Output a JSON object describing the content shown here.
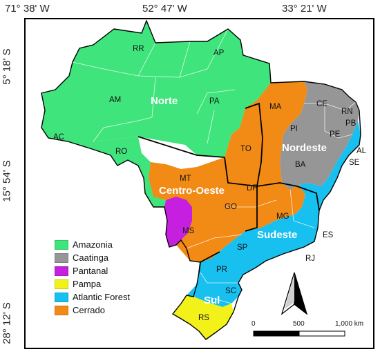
{
  "coordinates": {
    "longitudes": [
      "71° 38' W",
      "52° 47' W",
      "33° 21' W"
    ],
    "latitudes": [
      "5° 18' S",
      "15° 54' S",
      "28° 12' S"
    ]
  },
  "regions": [
    "Norte",
    "Nordeste",
    "Centro-Oeste",
    "Sudeste",
    "Sul"
  ],
  "states": [
    "RR",
    "AP",
    "AM",
    "PA",
    "AC",
    "RO",
    "MA",
    "CE",
    "RN",
    "PB",
    "PI",
    "PE",
    "AL",
    "SE",
    "TO",
    "BA",
    "MT",
    "DF",
    "GO",
    "MG",
    "ES",
    "MS",
    "SP",
    "RJ",
    "PR",
    "SC",
    "RS"
  ],
  "legend": [
    {
      "label": "Amazonia",
      "color": "#3fe47c"
    },
    {
      "label": "Caatinga",
      "color": "#969696"
    },
    {
      "label": "Pantanal",
      "color": "#c71fe0"
    },
    {
      "label": "Pampa",
      "color": "#f2f21a"
    },
    {
      "label": "Atlantic Forest",
      "color": "#17c0ee"
    },
    {
      "label": "Cerrado",
      "color": "#f28a16"
    }
  ],
  "scale_bar": {
    "labels": [
      "0",
      "500",
      "1,000 km"
    ]
  },
  "north_arrow": {
    "icon": "north-arrow-icon"
  }
}
